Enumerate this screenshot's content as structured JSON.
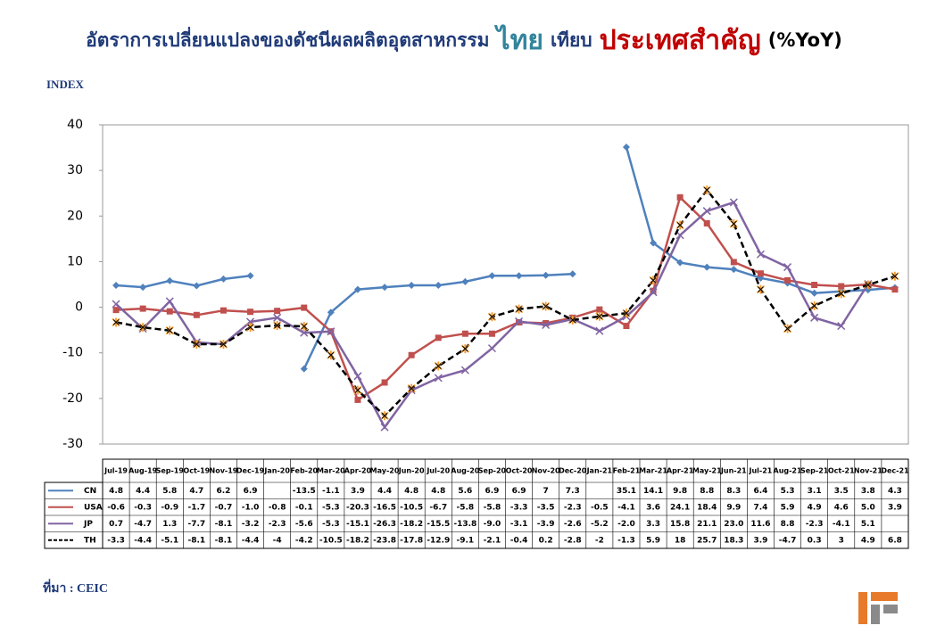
{
  "chart_data": {
    "type": "line",
    "title_parts": [
      {
        "text": "อัตราการเปลี่ยนแปลงของดัชนีผลผลิตอุตสาหกรรม",
        "color": "#1f3a78"
      },
      {
        "text": "ไทย",
        "color": "#31849b"
      },
      {
        "text": "เทียบ",
        "color": "#1f3a78"
      },
      {
        "text": "ประเทศสำคัญ",
        "color": "#c00000"
      },
      {
        "text": "(%YoY)",
        "color": "#000000"
      }
    ],
    "y_label": "INDEX",
    "source": "ที่มา : CEIC",
    "categories": [
      "Jul-19",
      "Aug-19",
      "Sep-19",
      "Oct-19",
      "Nov-19",
      "Dec-19",
      "Jan-20",
      "Feb-20",
      "Mar-20",
      "Apr-20",
      "May-20",
      "Jun-20",
      "Jul-20",
      "Aug-20",
      "Sep-20",
      "Oct-20",
      "Nov-20",
      "Dec-20",
      "Jan-21",
      "Feb-21",
      "Mar-21",
      "Apr-21",
      "May-21",
      "Jun-21",
      "Jul-21",
      "Aug-21",
      "Sep-21",
      "Oct-21",
      "Nov-21",
      "Dec-21"
    ],
    "ylim": [
      -30,
      40
    ],
    "yticks": [
      -30,
      -20,
      -10,
      0,
      10,
      20,
      30,
      40
    ],
    "grid": false,
    "series": [
      {
        "name": "CN",
        "color": "#4f81bd",
        "marker": "diamond",
        "dash": false,
        "values": [
          4.8,
          4.4,
          5.8,
          4.7,
          6.2,
          6.9,
          null,
          -13.5,
          -1.1,
          3.9,
          4.4,
          4.8,
          4.8,
          5.6,
          6.9,
          6.9,
          7,
          7.3,
          null,
          35.1,
          14.1,
          9.8,
          8.8,
          8.3,
          6.4,
          5.3,
          3.1,
          3.5,
          3.8,
          4.3
        ],
        "value_labels": [
          "4.8",
          "4.4",
          "5.8",
          "4.7",
          "6.2",
          "6.9",
          null,
          "-13.5",
          "-1.1",
          "3.9",
          "4.4",
          "4.8",
          "4.8",
          "5.6",
          "6.9",
          "6.9",
          "7",
          "7.3",
          null,
          "35.1",
          "14.1",
          "9.8",
          "8.8",
          "8.3",
          "6.4",
          "5.3",
          "3.1",
          "3.5",
          "3.8",
          "4.3"
        ]
      },
      {
        "name": "USA",
        "color": "#c0504d",
        "marker": "square",
        "dash": false,
        "values": [
          -0.6,
          -0.3,
          -0.9,
          -1.7,
          -0.7,
          -1.0,
          -0.8,
          -0.1,
          -5.3,
          -20.3,
          -16.5,
          -10.5,
          -6.7,
          -5.8,
          -5.8,
          -3.3,
          -3.5,
          -2.3,
          -0.5,
          -4.1,
          3.6,
          24.1,
          18.4,
          9.9,
          7.4,
          5.9,
          4.9,
          4.6,
          5.0,
          3.9
        ],
        "value_labels": [
          "-0.6",
          "-0.3",
          "-0.9",
          "-1.7",
          "-0.7",
          "-1.0",
          "-0.8",
          "-0.1",
          "-5.3",
          "-20.3",
          "-16.5",
          "-10.5",
          "-6.7",
          "-5.8",
          "-5.8",
          "-3.3",
          "-3.5",
          "-2.3",
          "-0.5",
          "-4.1",
          "3.6",
          "24.1",
          "18.4",
          "9.9",
          "7.4",
          "5.9",
          "4.9",
          "4.6",
          "5.0",
          "3.9"
        ]
      },
      {
        "name": "JP",
        "color": "#8064a2",
        "marker": "x",
        "dash": false,
        "values": [
          0.7,
          -4.7,
          1.3,
          -7.7,
          -8.1,
          -3.2,
          -2.3,
          -5.6,
          -5.3,
          -15.1,
          -26.3,
          -18.2,
          -15.5,
          -13.8,
          -9.0,
          -3.1,
          -3.9,
          -2.6,
          -5.2,
          -2.0,
          3.3,
          15.8,
          21.1,
          23.0,
          11.6,
          8.8,
          -2.3,
          -4.1,
          5.1,
          null
        ],
        "value_labels": [
          "0.7",
          "-4.7",
          "1.3",
          "-7.7",
          "-8.1",
          "-3.2",
          "-2.3",
          "-5.6",
          "-5.3",
          "-15.1",
          "-26.3",
          "-18.2",
          "-15.5",
          "-13.8",
          "-9.0",
          "-3.1",
          "-3.9",
          "-2.6",
          "-5.2",
          "-2.0",
          "3.3",
          "15.8",
          "21.1",
          "23.0",
          "11.6",
          "8.8",
          "-2.3",
          "-4.1",
          "5.1",
          null
        ]
      },
      {
        "name": "TH",
        "color": "#000000",
        "marker": "star",
        "dash": true,
        "values": [
          -3.3,
          -4.4,
          -5.1,
          -8.1,
          -8.1,
          -4.4,
          -4,
          -4.2,
          -10.5,
          -18.2,
          -23.8,
          -17.8,
          -12.9,
          -9.1,
          -2.1,
          -0.4,
          0.2,
          -2.8,
          -2,
          -1.3,
          5.9,
          18,
          25.7,
          18.3,
          3.9,
          -4.7,
          0.3,
          3,
          4.9,
          6.8
        ],
        "value_labels": [
          "-3.3",
          "-4.4",
          "-5.1",
          "-8.1",
          "-8.1",
          "-4.4",
          "-4",
          "-4.2",
          "-10.5",
          "-18.2",
          "-23.8",
          "-17.8",
          "-12.9",
          "-9.1",
          "-2.1",
          "-0.4",
          "0.2",
          "-2.8",
          "-2",
          "-1.3",
          "5.9",
          "18",
          "25.7",
          "18.3",
          "3.9",
          "-4.7",
          "0.3",
          "3",
          "4.9",
          "6.8"
        ]
      }
    ]
  }
}
